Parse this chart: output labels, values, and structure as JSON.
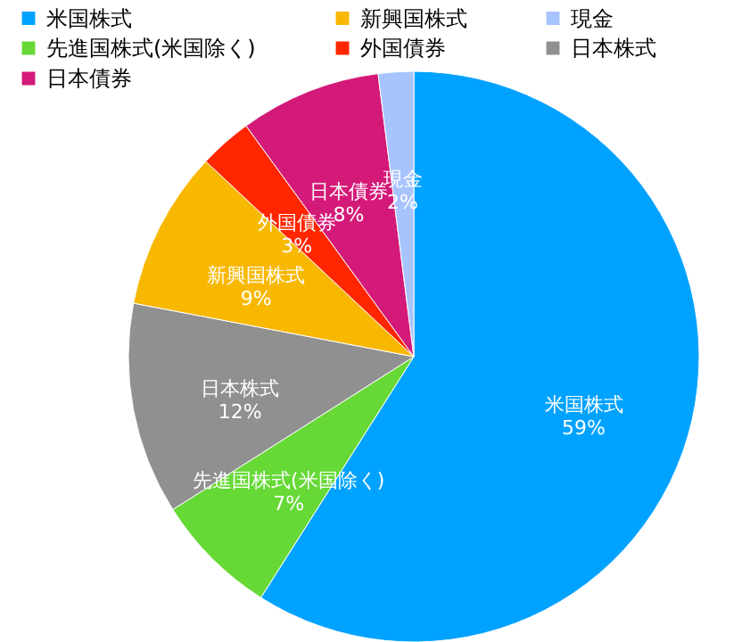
{
  "chart_data": {
    "type": "pie",
    "categories": [
      "米国株式",
      "先進国株式(米国除く)",
      "日本株式",
      "新興国株式",
      "外国債券",
      "日本債券",
      "現金"
    ],
    "values": [
      59,
      7,
      12,
      9,
      3,
      8,
      2
    ],
    "value_labels": [
      "59%",
      "7%",
      "12%",
      "9%",
      "3%",
      "8%",
      "2%"
    ],
    "colors": [
      "#00a2ff",
      "#66d936",
      "#909090",
      "#f8b800",
      "#ff2600",
      "#d41a78",
      "#a8c4ff"
    ],
    "legend": "top left"
  }
}
